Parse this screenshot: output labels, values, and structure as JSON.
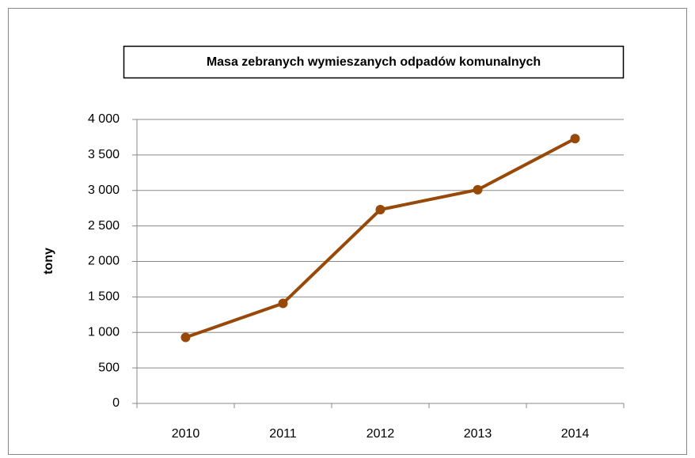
{
  "chart_data": {
    "type": "line",
    "title": "Masa zebranych wymieszanych odpadów komunalnych",
    "ylabel": "tony",
    "categories": [
      "2010",
      "2011",
      "2012",
      "2013",
      "2014"
    ],
    "values": [
      930,
      1410,
      2730,
      3010,
      3730
    ],
    "color": "#984807",
    "ylim": [
      0,
      4000
    ],
    "yticks": [
      0,
      500,
      {
        "value": 1000,
        "label": "1 000"
      },
      {
        "value": 1500,
        "label": "1 500"
      },
      {
        "value": 2000,
        "label": "2 000"
      },
      {
        "value": 2500,
        "label": "2 500"
      },
      {
        "value": 3000,
        "label": "3 000"
      },
      {
        "value": 3500,
        "label": "3 500"
      },
      {
        "value": 4000,
        "label": "4 000"
      }
    ],
    "grid": true
  }
}
